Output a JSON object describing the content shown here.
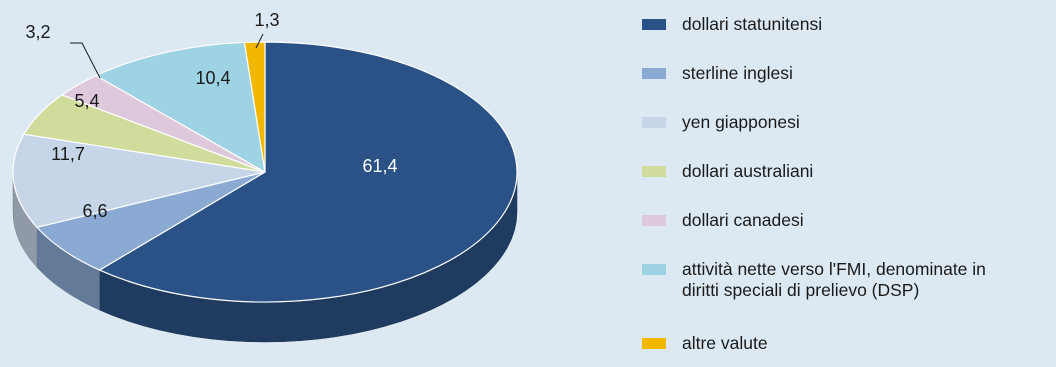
{
  "chart_data": {
    "type": "pie",
    "title": "",
    "categories": [
      "dollari statunitensi",
      "sterline inglesi",
      "yen giapponesi",
      "dollari australiani",
      "dollari canadesi",
      "attività nette verso l'FMI, denominate in\ndiritti speciali di prelievo (DSP)",
      "altre valute"
    ],
    "values": [
      61.4,
      6.6,
      11.7,
      5.4,
      3.2,
      10.4,
      1.3
    ],
    "value_labels": [
      "61,4",
      "6,6",
      "11,7",
      "5,4",
      "3,2",
      "10,4",
      "1,3"
    ],
    "colors": [
      "#2b5286",
      "#8aaad4",
      "#c7d5e8",
      "#cfdc9c",
      "#ddc8dc",
      "#9ed3e3",
      "#f2b800"
    ],
    "legend_position": "right",
    "style": "3d"
  }
}
